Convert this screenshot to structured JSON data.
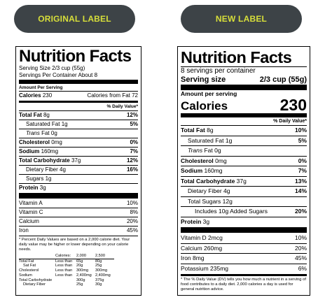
{
  "header": {
    "original_label": "ORIGINAL LABEL",
    "new_label": "NEW LABEL"
  },
  "original": {
    "title": "Nutrition Facts",
    "serving_size": "Serving Size 2/3 cup (55g)",
    "servings_per_container": "Servings Per Container About 8",
    "amount_per_serving": "Amount Per Serving",
    "calories_label": "Calories",
    "calories_value": "230",
    "calories_from_fat": "Calories from Fat 72",
    "dv_header": "% Daily Value*",
    "nutrients": [
      {
        "name": "Total Fat",
        "amount": "8g",
        "dv": "12%",
        "bold": true,
        "indent": 0,
        "italic": false
      },
      {
        "name": "Saturated Fat",
        "amount": "1g",
        "dv": "5%",
        "bold": false,
        "indent": 1,
        "italic": false
      },
      {
        "name": "Trans",
        "amount": "Fat 0g",
        "dv": "",
        "bold": false,
        "indent": 1,
        "italic": true
      },
      {
        "name": "Cholesterol",
        "amount": "0mg",
        "dv": "0%",
        "bold": true,
        "indent": 0,
        "italic": false
      },
      {
        "name": "Sodium",
        "amount": "160mg",
        "dv": "7%",
        "bold": true,
        "indent": 0,
        "italic": false
      },
      {
        "name": "Total Carbohydrate",
        "amount": "37g",
        "dv": "12%",
        "bold": true,
        "indent": 0,
        "italic": false
      },
      {
        "name": "Dietary Fiber",
        "amount": "4g",
        "dv": "16%",
        "bold": false,
        "indent": 1,
        "italic": false
      },
      {
        "name": "Sugars",
        "amount": "1g",
        "dv": "",
        "bold": false,
        "indent": 1,
        "italic": false
      },
      {
        "name": "Protein",
        "amount": "3g",
        "dv": "",
        "bold": true,
        "indent": 0,
        "italic": false
      }
    ],
    "vitamins": [
      {
        "name": "Vitamin A",
        "dv": "10%"
      },
      {
        "name": "Vitamin C",
        "dv": "8%"
      },
      {
        "name": "Calcium",
        "dv": "20%"
      },
      {
        "name": "Iron",
        "dv": "45%"
      }
    ],
    "footnote": "* Percent Daily Values are based on a 2,000 calorie diet. Your daily value may be higher or lower depending on your calorie needs.",
    "footnote_table": {
      "headers": [
        "",
        "Calories:",
        "2,000",
        "2,500"
      ],
      "rows": [
        [
          "Total Fat",
          "Less than",
          "65g",
          "80g"
        ],
        [
          "Sat Fat",
          "Less than",
          "20g",
          "25g"
        ],
        [
          "Cholesterol",
          "Less than",
          "300mg",
          "300mg"
        ],
        [
          "Sodium",
          "Less than",
          "2,400mg",
          "2,400mg"
        ],
        [
          "Total Carbohydrate",
          "",
          "300g",
          "375g"
        ],
        [
          "Dietary Fiber",
          "",
          "25g",
          "30g"
        ]
      ]
    }
  },
  "new": {
    "title": "Nutrition Facts",
    "servings_per_container": "8 servings per container",
    "serving_size_label": "Serving size",
    "serving_size_value": "2/3 cup (55g)",
    "amount_per_serving": "Amount per serving",
    "calories_label": "Calories",
    "calories_value": "230",
    "dv_header": "% Daily Value*",
    "nutrients": [
      {
        "name": "Total Fat",
        "amount": "8g",
        "dv": "10%",
        "bold": true,
        "indent": 0,
        "italic": false
      },
      {
        "name": "Saturated Fat",
        "amount": "1g",
        "dv": "5%",
        "bold": false,
        "indent": 1,
        "italic": false
      },
      {
        "name": "Trans",
        "amount": "Fat 0g",
        "dv": "",
        "bold": false,
        "indent": 1,
        "italic": true
      },
      {
        "name": "Cholesterol",
        "amount": "0mg",
        "dv": "0%",
        "bold": true,
        "indent": 0,
        "italic": false
      },
      {
        "name": "Sodium",
        "amount": "160mg",
        "dv": "7%",
        "bold": true,
        "indent": 0,
        "italic": false
      },
      {
        "name": "Total Carbohydrate",
        "amount": "37g",
        "dv": "13%",
        "bold": true,
        "indent": 0,
        "italic": false
      },
      {
        "name": "Dietary Fiber",
        "amount": "4g",
        "dv": "14%",
        "bold": false,
        "indent": 1,
        "italic": false
      },
      {
        "name": "Total Sugars",
        "amount": "12g",
        "dv": "",
        "bold": false,
        "indent": 1,
        "italic": false
      },
      {
        "name": "Includes 10g Added Sugars",
        "amount": "",
        "dv": "20%",
        "bold": false,
        "indent": 2,
        "italic": false
      },
      {
        "name": "Protein",
        "amount": "3g",
        "dv": "",
        "bold": true,
        "indent": 0,
        "italic": false
      }
    ],
    "vitamins": [
      {
        "name": "Vitamin D 2mcg",
        "dv": "10%"
      },
      {
        "name": "Calcium 260mg",
        "dv": "20%"
      },
      {
        "name": "Iron 8mg",
        "dv": "45%"
      },
      {
        "name": "Potassium 235mg",
        "dv": "6%"
      }
    ],
    "footnote": "* The % Daily Value (DV) tells you how much a nutrient in a serving of food contributes to a daily diet. 2,000 calories a day is used for general nutrition advice."
  }
}
